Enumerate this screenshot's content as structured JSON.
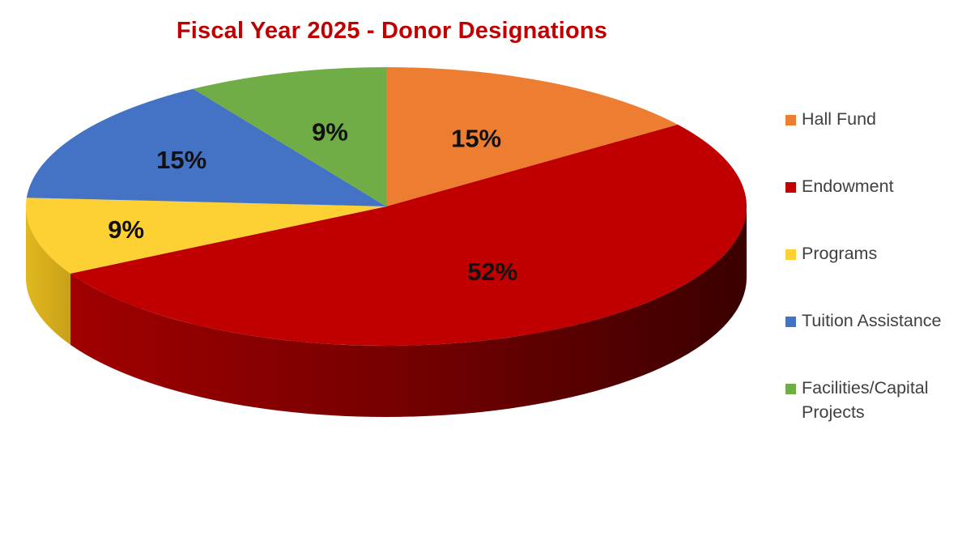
{
  "chart_data": {
    "type": "pie",
    "title": "Fiscal Year 2025 - Donor Designations",
    "slices": [
      {
        "label": "Hall Fund",
        "value": 15,
        "display": "15%",
        "color": "#ed7d31"
      },
      {
        "label": "Endowment",
        "value": 52,
        "display": "52%",
        "color": "#c00000"
      },
      {
        "label": "Programs",
        "value": 9,
        "display": "9%",
        "color": "#fdd033"
      },
      {
        "label": "Tuition Assistance",
        "value": 15,
        "display": "15%",
        "color": "#4472c4"
      },
      {
        "label": "Facilities/Capital Projects",
        "value": 9,
        "display": "9%",
        "color": "#70ad47"
      }
    ],
    "style": "3d",
    "legend_position": "right"
  }
}
